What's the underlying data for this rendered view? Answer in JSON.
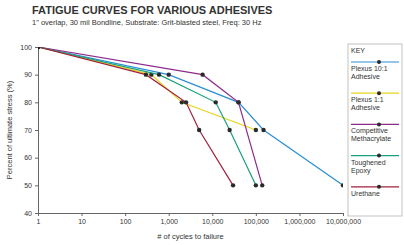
{
  "chart_data": {
    "type": "line",
    "title": "FATIGUE CURVES FOR VARIOUS ADHESIVES",
    "subtitle": "1\" overlap, 30 mil Bondline, Substrate: Grit-blasted steel, Freq: 30 Hz",
    "x_label": "# of cycles to failure",
    "y_label": "Percent of ultimate stress (%)",
    "legend_title": "KEY",
    "log": "x",
    "grid": false,
    "legend": "right",
    "marker": "circle",
    "xlim": [
      1,
      10000000
    ],
    "ylim": [
      40,
      100
    ],
    "xticks": [
      1,
      10,
      100,
      {
        "value": 1000,
        "label": "1,000"
      },
      {
        "value": 10000,
        "label": "10,000"
      },
      {
        "value": 100000,
        "label": "100,000"
      },
      {
        "value": 1000000,
        "label": "1,000,000"
      },
      {
        "value": 10000000,
        "label": "10,000,000"
      }
    ],
    "yticks": [
      40,
      50,
      60,
      70,
      80,
      90,
      100
    ],
    "series": [
      {
        "name": "Plexus 10:1 Adhesive",
        "color": "#2b8fd3",
        "x": [
          1,
          1000,
          40000,
          150000,
          10000000
        ],
        "values": [
          100,
          90,
          80,
          70,
          50
        ]
      },
      {
        "name": "Plexus 1:1 Adhesive",
        "color": "#e6d51a",
        "x": [
          1,
          400,
          2000,
          100000
        ],
        "values": [
          100,
          90,
          80,
          70
        ]
      },
      {
        "name": "Competitive Methacrylate",
        "color": "#8c2b8c",
        "x": [
          1,
          6000,
          40000,
          140000
        ],
        "values": [
          100,
          90,
          80,
          50
        ]
      },
      {
        "name": "Toughened Epoxy",
        "color": "#19a07c",
        "x": [
          1,
          600,
          12000,
          25000,
          100000
        ],
        "values": [
          100,
          90,
          80,
          70,
          50
        ]
      },
      {
        "name": "Urethane",
        "color": "#a3203c",
        "x": [
          1,
          300,
          2500,
          5000,
          30000
        ],
        "values": [
          100,
          90,
          80,
          70,
          50
        ]
      }
    ]
  }
}
